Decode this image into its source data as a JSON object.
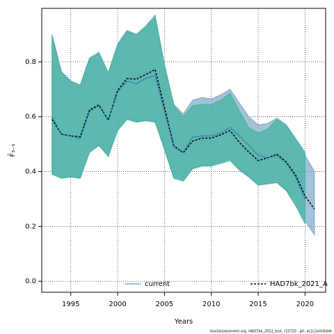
{
  "chart_data": {
    "type": "line",
    "xlabel": "Years",
    "ylabel": "F̄₃₋₅",
    "footnote": "stockassessment.org, HAD7bk_2022_test, r15720 , git: ec2c2a0c6dde",
    "xlim": [
      1991.9,
      2022.2
    ],
    "ylim": [
      -0.04,
      0.995
    ],
    "xticks": [
      1995,
      2000,
      2005,
      2010,
      2015,
      2020
    ],
    "yticks": [
      {
        "value": 0,
        "label": "0.0"
      },
      {
        "value": 0.2,
        "label": "0.2"
      },
      {
        "value": 0.4,
        "label": "0.4"
      },
      {
        "value": 0.6,
        "label": "0.6"
      },
      {
        "value": 0.8,
        "label": "0.8"
      }
    ],
    "grid": true,
    "legend": "bottom",
    "series": [
      {
        "name": "HAD7bk_2021_A",
        "color": "#000000",
        "band_color": "#7ea7c7",
        "x": [
          1993,
          1994,
          1995,
          1996,
          1997,
          1998,
          1999,
          2000,
          2001,
          2002,
          2003,
          2004,
          2005,
          2006,
          2007,
          2008,
          2009,
          2010,
          2011,
          2012,
          2013,
          2014,
          2015,
          2016,
          2017,
          2018,
          2019,
          2020,
          2021
        ],
        "values": [
          0.59,
          0.537,
          0.53,
          0.527,
          0.625,
          0.643,
          0.587,
          0.696,
          0.739,
          0.737,
          0.754,
          0.772,
          0.633,
          0.494,
          0.468,
          0.511,
          0.522,
          0.522,
          0.534,
          0.549,
          0.506,
          0.471,
          0.44,
          0.45,
          0.463,
          0.435,
          0.387,
          0.311,
          0.263
        ],
        "upper": [
          0.9,
          0.765,
          0.73,
          0.715,
          0.815,
          0.835,
          0.76,
          0.865,
          0.915,
          0.9,
          0.93,
          0.96,
          0.79,
          0.645,
          0.61,
          0.66,
          0.67,
          0.665,
          0.68,
          0.7,
          0.65,
          0.6,
          0.57,
          0.575,
          0.595,
          0.57,
          0.52,
          0.46,
          0.4
        ],
        "lower": [
          0.395,
          0.38,
          0.382,
          0.378,
          0.472,
          0.498,
          0.458,
          0.553,
          0.592,
          0.582,
          0.588,
          0.585,
          0.49,
          0.38,
          0.37,
          0.415,
          0.42,
          0.425,
          0.435,
          0.445,
          0.41,
          0.385,
          0.355,
          0.355,
          0.36,
          0.335,
          0.285,
          0.22,
          0.17
        ]
      },
      {
        "name": "current",
        "color": "#1f5ca8",
        "band_color": "#3fb3a0",
        "x": [
          1993,
          1994,
          1995,
          1996,
          1997,
          1998,
          1999,
          2000,
          2001,
          2002,
          2003,
          2004,
          2005,
          2006,
          2007,
          2008,
          2009,
          2010,
          2011,
          2012,
          2013,
          2014,
          2015,
          2016,
          2017,
          2018,
          2019,
          2020
        ],
        "values": [
          0.6,
          0.535,
          0.53,
          0.52,
          0.62,
          0.64,
          0.59,
          0.69,
          0.73,
          0.72,
          0.74,
          0.75,
          0.62,
          0.49,
          0.47,
          0.525,
          0.53,
          0.53,
          0.54,
          0.56,
          0.53,
          0.495,
          0.46,
          0.45,
          0.46,
          0.43,
          0.38,
          0.3
        ],
        "upper": [
          0.89,
          0.76,
          0.73,
          0.715,
          0.81,
          0.83,
          0.76,
          0.86,
          0.91,
          0.9,
          0.93,
          0.97,
          0.79,
          0.64,
          0.6,
          0.64,
          0.645,
          0.645,
          0.66,
          0.685,
          0.62,
          0.56,
          0.54,
          0.555,
          0.59,
          0.565,
          0.52,
          0.47
        ],
        "lower": [
          0.39,
          0.375,
          0.38,
          0.375,
          0.47,
          0.495,
          0.455,
          0.55,
          0.59,
          0.58,
          0.585,
          0.58,
          0.48,
          0.375,
          0.365,
          0.41,
          0.42,
          0.42,
          0.43,
          0.44,
          0.405,
          0.38,
          0.35,
          0.355,
          0.36,
          0.33,
          0.275,
          0.21
        ]
      }
    ]
  }
}
